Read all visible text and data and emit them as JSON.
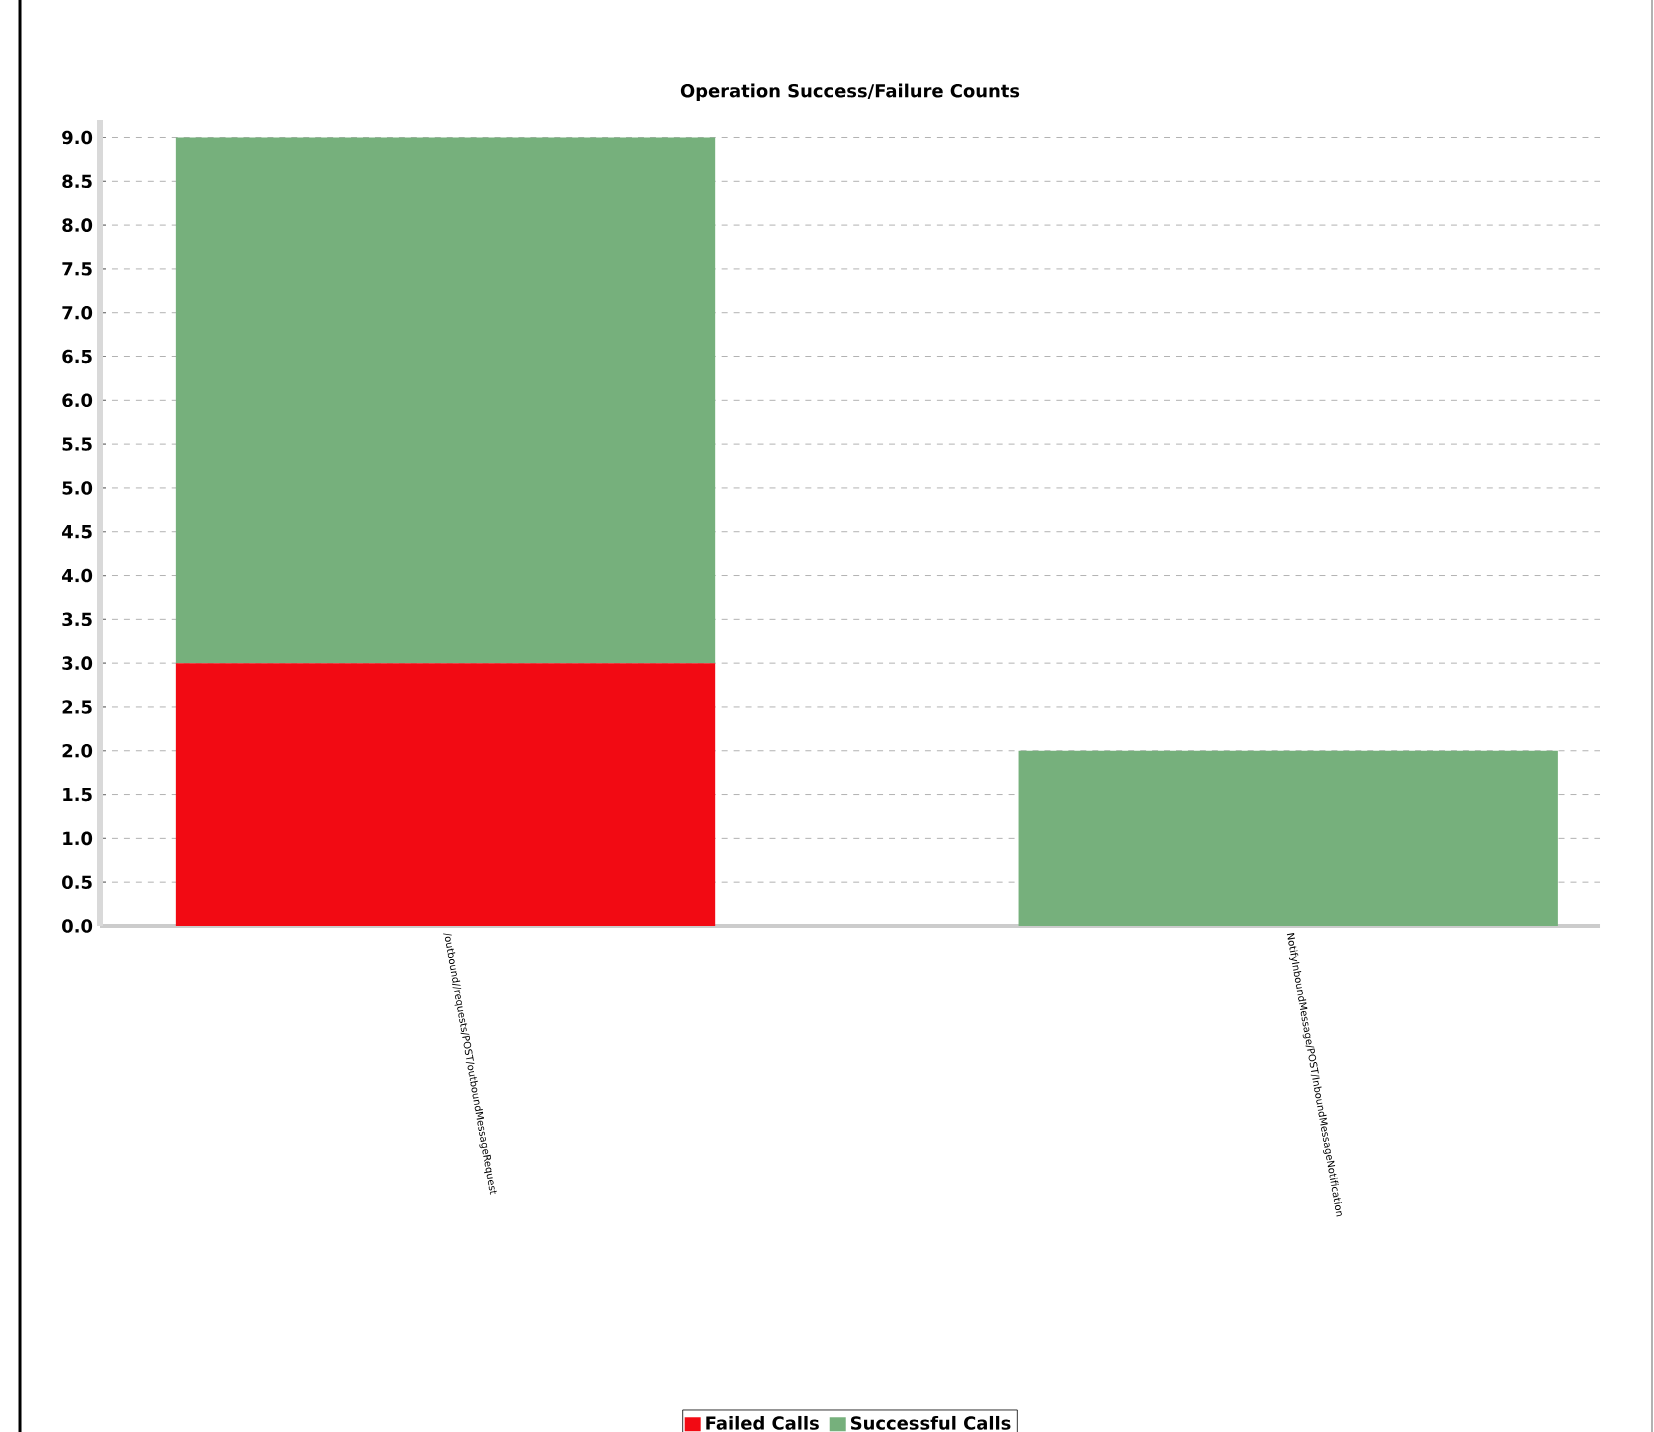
{
  "chart_data": {
    "type": "bar",
    "stacked": true,
    "title": "Operation Success/Failure Counts",
    "categories": [
      "/outbound//requests/POST/outboundMessageRequest",
      "NotifyInboundMessage/POST/InboundMessageNotification"
    ],
    "series": [
      {
        "name": "Failed Calls",
        "color": "#f20a13",
        "values": [
          3,
          0
        ]
      },
      {
        "name": "Successful Calls",
        "color": "#76b07c",
        "values": [
          6,
          2
        ]
      }
    ],
    "ylim": [
      0,
      9.2
    ],
    "yticks": [
      {
        "value": 0,
        "label": "0.0"
      },
      {
        "value": 0.5,
        "label": "0.5"
      },
      {
        "value": 1,
        "label": "1.0"
      },
      {
        "value": 1.5,
        "label": "1.5"
      },
      {
        "value": 2,
        "label": "2.0"
      },
      {
        "value": 2.5,
        "label": "2.5"
      },
      {
        "value": 3,
        "label": "3.0"
      },
      {
        "value": 3.5,
        "label": "3.5"
      },
      {
        "value": 4,
        "label": "4.0"
      },
      {
        "value": 4.5,
        "label": "4.5"
      },
      {
        "value": 5,
        "label": "5.0"
      },
      {
        "value": 5.5,
        "label": "5.5"
      },
      {
        "value": 6,
        "label": "6.0"
      },
      {
        "value": 6.5,
        "label": "6.5"
      },
      {
        "value": 7,
        "label": "7.0"
      },
      {
        "value": 7.5,
        "label": "7.5"
      },
      {
        "value": 8,
        "label": "8.0"
      },
      {
        "value": 8.5,
        "label": "8.5"
      },
      {
        "value": 9,
        "label": "9.0"
      }
    ],
    "grid": "y",
    "legend": "bottom"
  }
}
